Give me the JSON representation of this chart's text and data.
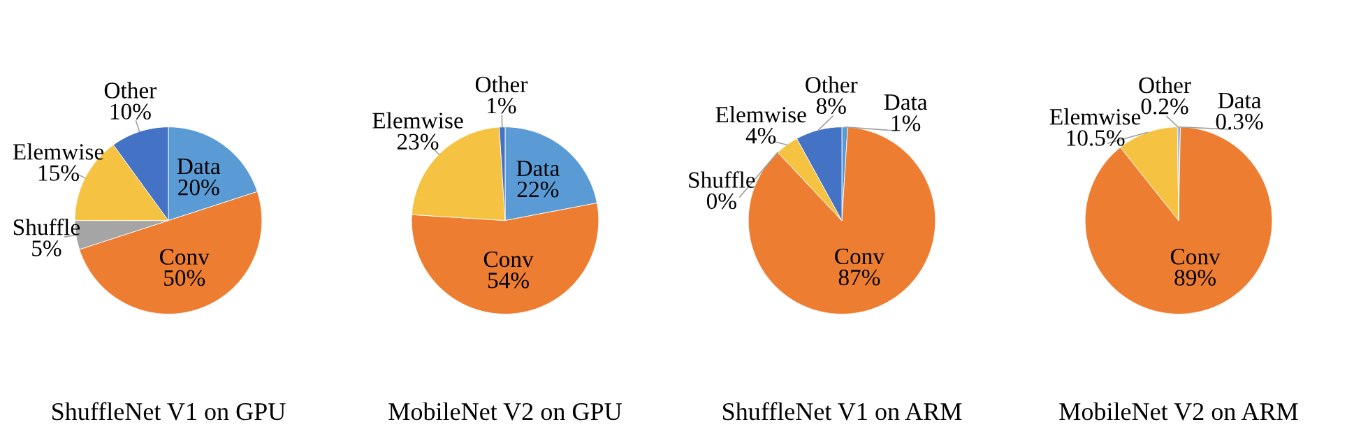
{
  "chart_data": [
    {
      "type": "pie",
      "title": "ShuffleNet V1 on GPU",
      "categories": [
        "Data",
        "Conv",
        "Shuffle",
        "Elemwise",
        "Other"
      ],
      "values": [
        20,
        50,
        5,
        15,
        10
      ],
      "value_labels": [
        "20%",
        "50%",
        "5%",
        "15%",
        "10%"
      ],
      "colors": [
        "#5b9bd5",
        "#ed7d31",
        "#a5a5a5",
        "#f5c242",
        "#4472c4"
      ]
    },
    {
      "type": "pie",
      "title": "MobileNet V2 on GPU",
      "categories": [
        "Data",
        "Conv",
        "Elemwise",
        "Other"
      ],
      "values": [
        22,
        54,
        23,
        1
      ],
      "value_labels": [
        "22%",
        "54%",
        "23%",
        "1%"
      ],
      "colors": [
        "#5b9bd5",
        "#ed7d31",
        "#f5c242",
        "#4472c4"
      ]
    },
    {
      "type": "pie",
      "title": "ShuffleNet V1 on ARM",
      "categories": [
        "Data",
        "Conv",
        "Shuffle",
        "Elemwise",
        "Other"
      ],
      "values": [
        1,
        87,
        0,
        4,
        8
      ],
      "value_labels": [
        "1%",
        "87%",
        "0%",
        "4%",
        "8%"
      ],
      "colors": [
        "#5b9bd5",
        "#ed7d31",
        "#a5a5a5",
        "#f5c242",
        "#4472c4"
      ]
    },
    {
      "type": "pie",
      "title": "MobileNet V2 on ARM",
      "categories": [
        "Data",
        "Conv",
        "Elemwise",
        "Other"
      ],
      "values": [
        0.3,
        89,
        10.5,
        0.2
      ],
      "value_labels": [
        "0.3%",
        "89%",
        "10.5%",
        "0.2%"
      ],
      "colors": [
        "#5b9bd5",
        "#ed7d31",
        "#f5c242",
        "#4472c4"
      ]
    }
  ]
}
